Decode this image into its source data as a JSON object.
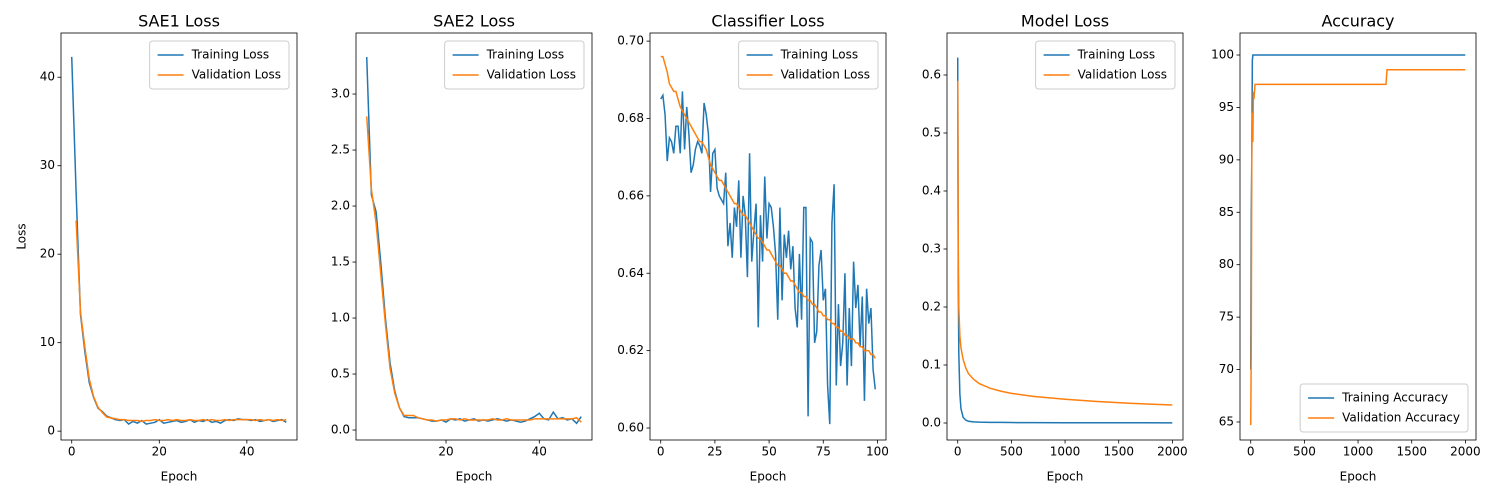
{
  "chart_data": [
    {
      "type": "line",
      "title": "SAE1 Loss",
      "xlabel": "Epoch",
      "ylabel": "Loss",
      "x": [
        0,
        1,
        2,
        3,
        4,
        5,
        6,
        7,
        8,
        9,
        10,
        11,
        12,
        13,
        14,
        15,
        16,
        17,
        18,
        19,
        20,
        21,
        22,
        23,
        24,
        25,
        26,
        27,
        28,
        29,
        30,
        31,
        32,
        33,
        34,
        35,
        36,
        37,
        38,
        39,
        40,
        41,
        42,
        43,
        44,
        45,
        46,
        47,
        48,
        49
      ],
      "series": [
        {
          "name": "Training Loss",
          "color": "#1f77b4",
          "values": [
            42.3,
            27,
            13.2,
            9,
            5.5,
            3.8,
            2.6,
            2.2,
            1.7,
            1.5,
            1.3,
            1.2,
            1.3,
            0.8,
            1.1,
            0.9,
            1.2,
            0.8,
            0.9,
            1.0,
            1.3,
            0.9,
            1.0,
            1.1,
            1.2,
            1.0,
            1.1,
            1.3,
            1.0,
            1.2,
            1.1,
            1.3,
            1.0,
            1.1,
            0.9,
            1.2,
            1.3,
            1.2,
            1.4,
            1.3,
            1.3,
            1.2,
            1.3,
            1.1,
            1.2,
            1.3,
            1.1,
            1.2,
            1.3,
            1.0
          ]
        },
        {
          "name": "Validation Loss",
          "color": "#ff7f0e",
          "values": [
            null,
            23.8,
            13.5,
            9.5,
            5.9,
            3.9,
            2.7,
            2.1,
            1.6,
            1.5,
            1.4,
            1.3,
            1.3,
            1.2,
            1.2,
            1.2,
            1.1,
            1.2,
            1.2,
            1.3,
            1.2,
            1.2,
            1.3,
            1.2,
            1.3,
            1.2,
            1.2,
            1.3,
            1.2,
            1.2,
            1.3,
            1.2,
            1.3,
            1.2,
            1.2,
            1.3,
            1.2,
            1.3,
            1.3,
            1.3,
            1.3,
            1.3,
            1.2,
            1.3,
            1.2,
            1.3,
            1.2,
            1.3,
            1.2,
            1.3
          ]
        }
      ],
      "xlim": [
        -2.45,
        51.45
      ],
      "ylim": [
        -1.0,
        45.0
      ],
      "xticks": [
        0,
        20,
        40
      ],
      "yticks": [
        0,
        10,
        20,
        30,
        40
      ],
      "grid": false,
      "legend": "upper right"
    },
    {
      "type": "line",
      "title": "SAE2 Loss",
      "xlabel": "Epoch",
      "x": [
        3,
        4,
        5,
        6,
        7,
        8,
        9,
        10,
        11,
        12,
        13,
        14,
        15,
        16,
        17,
        18,
        19,
        20,
        21,
        22,
        23,
        24,
        25,
        26,
        27,
        28,
        29,
        30,
        31,
        32,
        33,
        34,
        35,
        36,
        37,
        38,
        39,
        40,
        41,
        42,
        43,
        44,
        45,
        46,
        47,
        48,
        49
      ],
      "series": [
        {
          "name": "Training Loss",
          "color": "#1f77b4",
          "values": [
            3.33,
            2.1,
            1.95,
            1.5,
            1.0,
            0.6,
            0.35,
            0.2,
            0.12,
            0.11,
            0.11,
            0.11,
            0.1,
            0.09,
            0.08,
            0.08,
            0.09,
            0.07,
            0.1,
            0.09,
            0.1,
            0.08,
            0.09,
            0.1,
            0.08,
            0.09,
            0.08,
            0.09,
            0.1,
            0.09,
            0.08,
            0.09,
            0.08,
            0.07,
            0.08,
            0.1,
            0.12,
            0.15,
            0.1,
            0.09,
            0.16,
            0.1,
            0.11,
            0.09,
            0.1,
            0.06,
            0.12
          ]
        },
        {
          "name": "Validation Loss",
          "color": "#ff7f0e",
          "values": [
            2.8,
            2.15,
            1.85,
            1.4,
            0.95,
            0.55,
            0.33,
            0.2,
            0.13,
            0.13,
            0.13,
            0.11,
            0.1,
            0.09,
            0.09,
            0.08,
            0.09,
            0.09,
            0.1,
            0.1,
            0.09,
            0.1,
            0.09,
            0.09,
            0.09,
            0.09,
            0.09,
            0.1,
            0.09,
            0.09,
            0.1,
            0.09,
            0.09,
            0.09,
            0.09,
            0.09,
            0.1,
            0.1,
            0.1,
            0.1,
            0.1,
            0.1,
            0.1,
            0.1,
            0.1,
            0.11,
            0.07
          ]
        }
      ],
      "xlim": [
        0.7,
        51.3
      ],
      "ylim": [
        -0.089,
        3.545
      ],
      "xticks": [
        20,
        40
      ],
      "yticks": [
        {
          "value": 0,
          "label": "0.0"
        },
        0.5,
        {
          "value": 1,
          "label": "1.0"
        },
        1.5,
        {
          "value": 2,
          "label": "2.0"
        },
        2.5,
        {
          "value": 3,
          "label": "3.0"
        }
      ],
      "grid": false,
      "legend": "upper right"
    },
    {
      "type": "line",
      "title": "Classifier Loss",
      "xlabel": "Epoch",
      "x": [
        0,
        1,
        2,
        3,
        4,
        5,
        6,
        7,
        8,
        9,
        10,
        11,
        12,
        13,
        14,
        15,
        16,
        17,
        18,
        19,
        20,
        21,
        22,
        23,
        24,
        25,
        26,
        27,
        28,
        29,
        30,
        31,
        32,
        33,
        34,
        35,
        36,
        37,
        38,
        39,
        40,
        41,
        42,
        43,
        44,
        45,
        46,
        47,
        48,
        49,
        50,
        51,
        52,
        53,
        54,
        55,
        56,
        57,
        58,
        59,
        60,
        61,
        62,
        63,
        64,
        65,
        66,
        67,
        68,
        69,
        70,
        71,
        72,
        73,
        74,
        75,
        76,
        77,
        78,
        79,
        80,
        81,
        82,
        83,
        84,
        85,
        86,
        87,
        88,
        89,
        90,
        91,
        92,
        93,
        94,
        95,
        96,
        97,
        98,
        99
      ],
      "series": [
        {
          "name": "Training Loss",
          "color": "#1f77b4",
          "values": [
            0.685,
            0.686,
            0.681,
            0.669,
            0.675,
            0.674,
            0.671,
            0.678,
            0.678,
            0.671,
            0.687,
            0.672,
            0.683,
            0.676,
            0.666,
            0.668,
            0.672,
            0.674,
            0.673,
            0.671,
            0.684,
            0.681,
            0.676,
            0.661,
            0.671,
            0.672,
            0.662,
            0.66,
            0.659,
            0.658,
            0.666,
            0.647,
            0.653,
            0.644,
            0.657,
            0.652,
            0.664,
            0.644,
            0.66,
            0.655,
            0.639,
            0.671,
            0.643,
            0.651,
            0.658,
            0.626,
            0.655,
            0.643,
            0.665,
            0.649,
            0.658,
            0.657,
            0.652,
            0.645,
            0.628,
            0.657,
            0.633,
            0.65,
            0.644,
            0.651,
            0.641,
            0.647,
            0.631,
            0.626,
            0.645,
            0.628,
            0.657,
            0.657,
            0.603,
            0.649,
            0.648,
            0.622,
            0.625,
            0.642,
            0.646,
            0.633,
            0.636,
            0.611,
            0.601,
            0.653,
            0.663,
            0.611,
            0.632,
            0.616,
            0.622,
            0.64,
            0.611,
            0.631,
            0.616,
            0.643,
            0.631,
            0.637,
            0.621,
            0.634,
            0.607,
            0.636,
            0.627,
            0.631,
            0.615,
            0.61
          ]
        },
        {
          "name": "Validation Loss",
          "color": "#ff7f0e",
          "values": [
            0.696,
            0.696,
            0.694,
            0.692,
            0.689,
            0.688,
            0.687,
            0.687,
            0.685,
            0.683,
            0.682,
            0.681,
            0.68,
            0.679,
            0.678,
            0.677,
            0.676,
            0.675,
            0.674,
            0.674,
            0.673,
            0.672,
            0.67,
            0.668,
            0.667,
            0.666,
            0.665,
            0.664,
            0.664,
            0.663,
            0.662,
            0.661,
            0.66,
            0.659,
            0.658,
            0.658,
            0.657,
            0.656,
            0.655,
            0.655,
            0.654,
            0.653,
            0.652,
            0.651,
            0.65,
            0.649,
            0.649,
            0.648,
            0.647,
            0.646,
            0.646,
            0.645,
            0.644,
            0.643,
            0.642,
            0.642,
            0.641,
            0.64,
            0.64,
            0.639,
            0.638,
            0.638,
            0.637,
            0.636,
            0.635,
            0.635,
            0.634,
            0.634,
            0.633,
            0.633,
            0.632,
            0.632,
            0.631,
            0.63,
            0.63,
            0.629,
            0.629,
            0.628,
            0.628,
            0.627,
            0.627,
            0.626,
            0.626,
            0.625,
            0.625,
            0.624,
            0.624,
            0.623,
            0.623,
            0.623,
            0.622,
            0.622,
            0.621,
            0.621,
            0.62,
            0.62,
            0.62,
            0.619,
            0.619,
            0.618
          ]
        }
      ],
      "xlim": [
        -4.95,
        103.95
      ],
      "ylim": [
        0.5969,
        0.7021
      ],
      "xticks": [
        0,
        25,
        50,
        75,
        100
      ],
      "yticks": [
        {
          "value": 0.6,
          "label": "0.60"
        },
        0.62,
        0.64,
        0.66,
        0.68,
        {
          "value": 0.7,
          "label": "0.70"
        }
      ],
      "grid": false,
      "legend": "upper right"
    },
    {
      "type": "line",
      "title": "Model Loss",
      "xlabel": "Epoch",
      "x": [
        0,
        5,
        10,
        20,
        30,
        50,
        75,
        100,
        150,
        200,
        300,
        400,
        500,
        700,
        1000,
        1300,
        1600,
        1999
      ],
      "series": [
        {
          "name": "Training Loss",
          "color": "#1f77b4",
          "values": [
            0.63,
            0.25,
            0.12,
            0.05,
            0.025,
            0.01,
            0.005,
            0.003,
            0.002,
            0.0015,
            0.001,
            0.001,
            0.0008,
            0.0006,
            0.0005,
            0.0004,
            0.0004,
            0.0003
          ]
        },
        {
          "name": "Validation Loss",
          "color": "#ff7f0e",
          "values": [
            0.59,
            0.3,
            0.2,
            0.15,
            0.13,
            0.11,
            0.095,
            0.085,
            0.075,
            0.068,
            0.06,
            0.055,
            0.051,
            0.046,
            0.041,
            0.037,
            0.034,
            0.031
          ]
        }
      ],
      "xlim": [
        -99.95,
        2098.9
      ],
      "ylim": [
        -0.0293,
        0.6724
      ],
      "xticks": [
        0,
        500,
        1000,
        1500,
        2000
      ],
      "yticks": [
        {
          "value": 0,
          "label": "0.0"
        },
        0.1,
        0.2,
        0.3,
        0.4,
        0.5,
        0.6
      ],
      "grid": false,
      "legend": "upper right"
    },
    {
      "type": "line",
      "title": "Accuracy",
      "xlabel": "Epoch",
      "x": [
        0,
        5,
        10,
        15,
        20,
        25,
        30,
        40,
        50,
        100,
        500,
        1000,
        1260,
        1270,
        1500,
        1999
      ],
      "series": [
        {
          "name": "Training Accuracy",
          "color": "#1f77b4",
          "values": [
            70,
            85,
            90,
            99.5,
            100,
            100,
            100,
            100,
            100,
            100,
            100,
            100,
            100,
            100,
            100,
            100
          ]
        },
        {
          "name": "Validation Accuracy",
          "color": "#ff7f0e",
          "values": [
            64.7,
            72,
            92,
            94.5,
            91.7,
            96.5,
            95.8,
            97.2,
            97.2,
            97.2,
            97.2,
            97.2,
            97.2,
            98.6,
            98.6,
            98.6
          ]
        }
      ],
      "xlim": [
        -99.95,
        2098.9
      ],
      "ylim": [
        63.28,
        102.1
      ],
      "xticks": [
        0,
        500,
        1000,
        1500,
        2000
      ],
      "yticks": [
        65,
        70,
        75,
        80,
        85,
        90,
        95,
        100
      ],
      "grid": false,
      "legend": "lower right"
    }
  ]
}
